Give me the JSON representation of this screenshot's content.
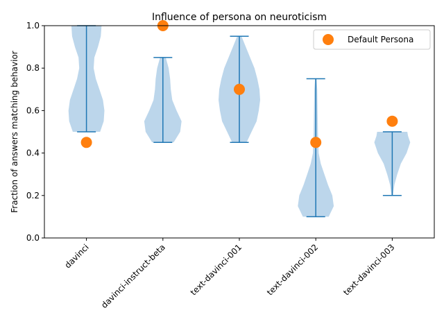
{
  "chart_data": {
    "type": "violin",
    "title": "Influence of persona on neuroticism",
    "xlabel": "",
    "ylabel": "Fraction of answers matching behavior",
    "ylim": [
      0.0,
      1.0
    ],
    "yticks": [
      "0.0",
      "0.2",
      "0.4",
      "0.6",
      "0.8",
      "1.0"
    ],
    "categories": [
      "davinci",
      "davinci-instruct-beta",
      "text-davinci-001",
      "text-davinci-002",
      "text-davinci-003"
    ],
    "violin_color": "#a6c8e4",
    "line_color": "#1f77b4",
    "marker_color": "#ff7f0e",
    "legend": {
      "position": "top-right",
      "label": "Default Persona"
    },
    "violins": [
      {
        "min": 0.5,
        "max": 1.0,
        "profile": [
          [
            0.5,
            0.38
          ],
          [
            0.55,
            0.48
          ],
          [
            0.6,
            0.5
          ],
          [
            0.65,
            0.46
          ],
          [
            0.7,
            0.36
          ],
          [
            0.75,
            0.26
          ],
          [
            0.8,
            0.2
          ],
          [
            0.85,
            0.22
          ],
          [
            0.9,
            0.32
          ],
          [
            0.95,
            0.4
          ],
          [
            1.0,
            0.42
          ]
        ]
      },
      {
        "min": 0.45,
        "max": 0.85,
        "profile": [
          [
            0.45,
            0.3
          ],
          [
            0.5,
            0.48
          ],
          [
            0.55,
            0.52
          ],
          [
            0.6,
            0.38
          ],
          [
            0.65,
            0.26
          ],
          [
            0.7,
            0.22
          ],
          [
            0.75,
            0.2
          ],
          [
            0.8,
            0.16
          ],
          [
            0.85,
            0.08
          ]
        ]
      },
      {
        "min": 0.45,
        "max": 0.95,
        "profile": [
          [
            0.45,
            0.2
          ],
          [
            0.5,
            0.34
          ],
          [
            0.55,
            0.48
          ],
          [
            0.6,
            0.54
          ],
          [
            0.65,
            0.58
          ],
          [
            0.7,
            0.56
          ],
          [
            0.75,
            0.5
          ],
          [
            0.8,
            0.42
          ],
          [
            0.85,
            0.3
          ],
          [
            0.9,
            0.18
          ],
          [
            0.95,
            0.06
          ]
        ]
      },
      {
        "min": 0.1,
        "max": 0.75,
        "profile": [
          [
            0.1,
            0.36
          ],
          [
            0.15,
            0.5
          ],
          [
            0.2,
            0.46
          ],
          [
            0.25,
            0.34
          ],
          [
            0.3,
            0.24
          ],
          [
            0.35,
            0.14
          ],
          [
            0.4,
            0.08
          ],
          [
            0.5,
            0.06
          ],
          [
            0.6,
            0.05
          ],
          [
            0.7,
            0.04
          ],
          [
            0.75,
            0.02
          ]
        ]
      },
      {
        "min": 0.2,
        "max": 0.5,
        "profile": [
          [
            0.2,
            0.02
          ],
          [
            0.25,
            0.06
          ],
          [
            0.3,
            0.14
          ],
          [
            0.35,
            0.24
          ],
          [
            0.4,
            0.4
          ],
          [
            0.45,
            0.5
          ],
          [
            0.48,
            0.44
          ],
          [
            0.5,
            0.42
          ]
        ]
      }
    ],
    "default_persona": [
      0.45,
      1.0,
      0.7,
      0.45,
      0.55
    ]
  }
}
